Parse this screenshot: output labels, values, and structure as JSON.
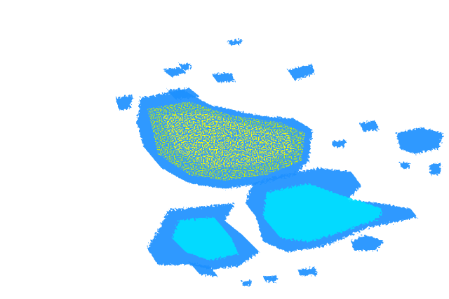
{
  "radar": {
    "colors": {
      "background": "#ffffff",
      "light": "#1e90ff",
      "medium": "#00c8ff",
      "strong": "#00e5ff",
      "heavy": "#c8f000",
      "intense": "#ffff00"
    }
  }
}
